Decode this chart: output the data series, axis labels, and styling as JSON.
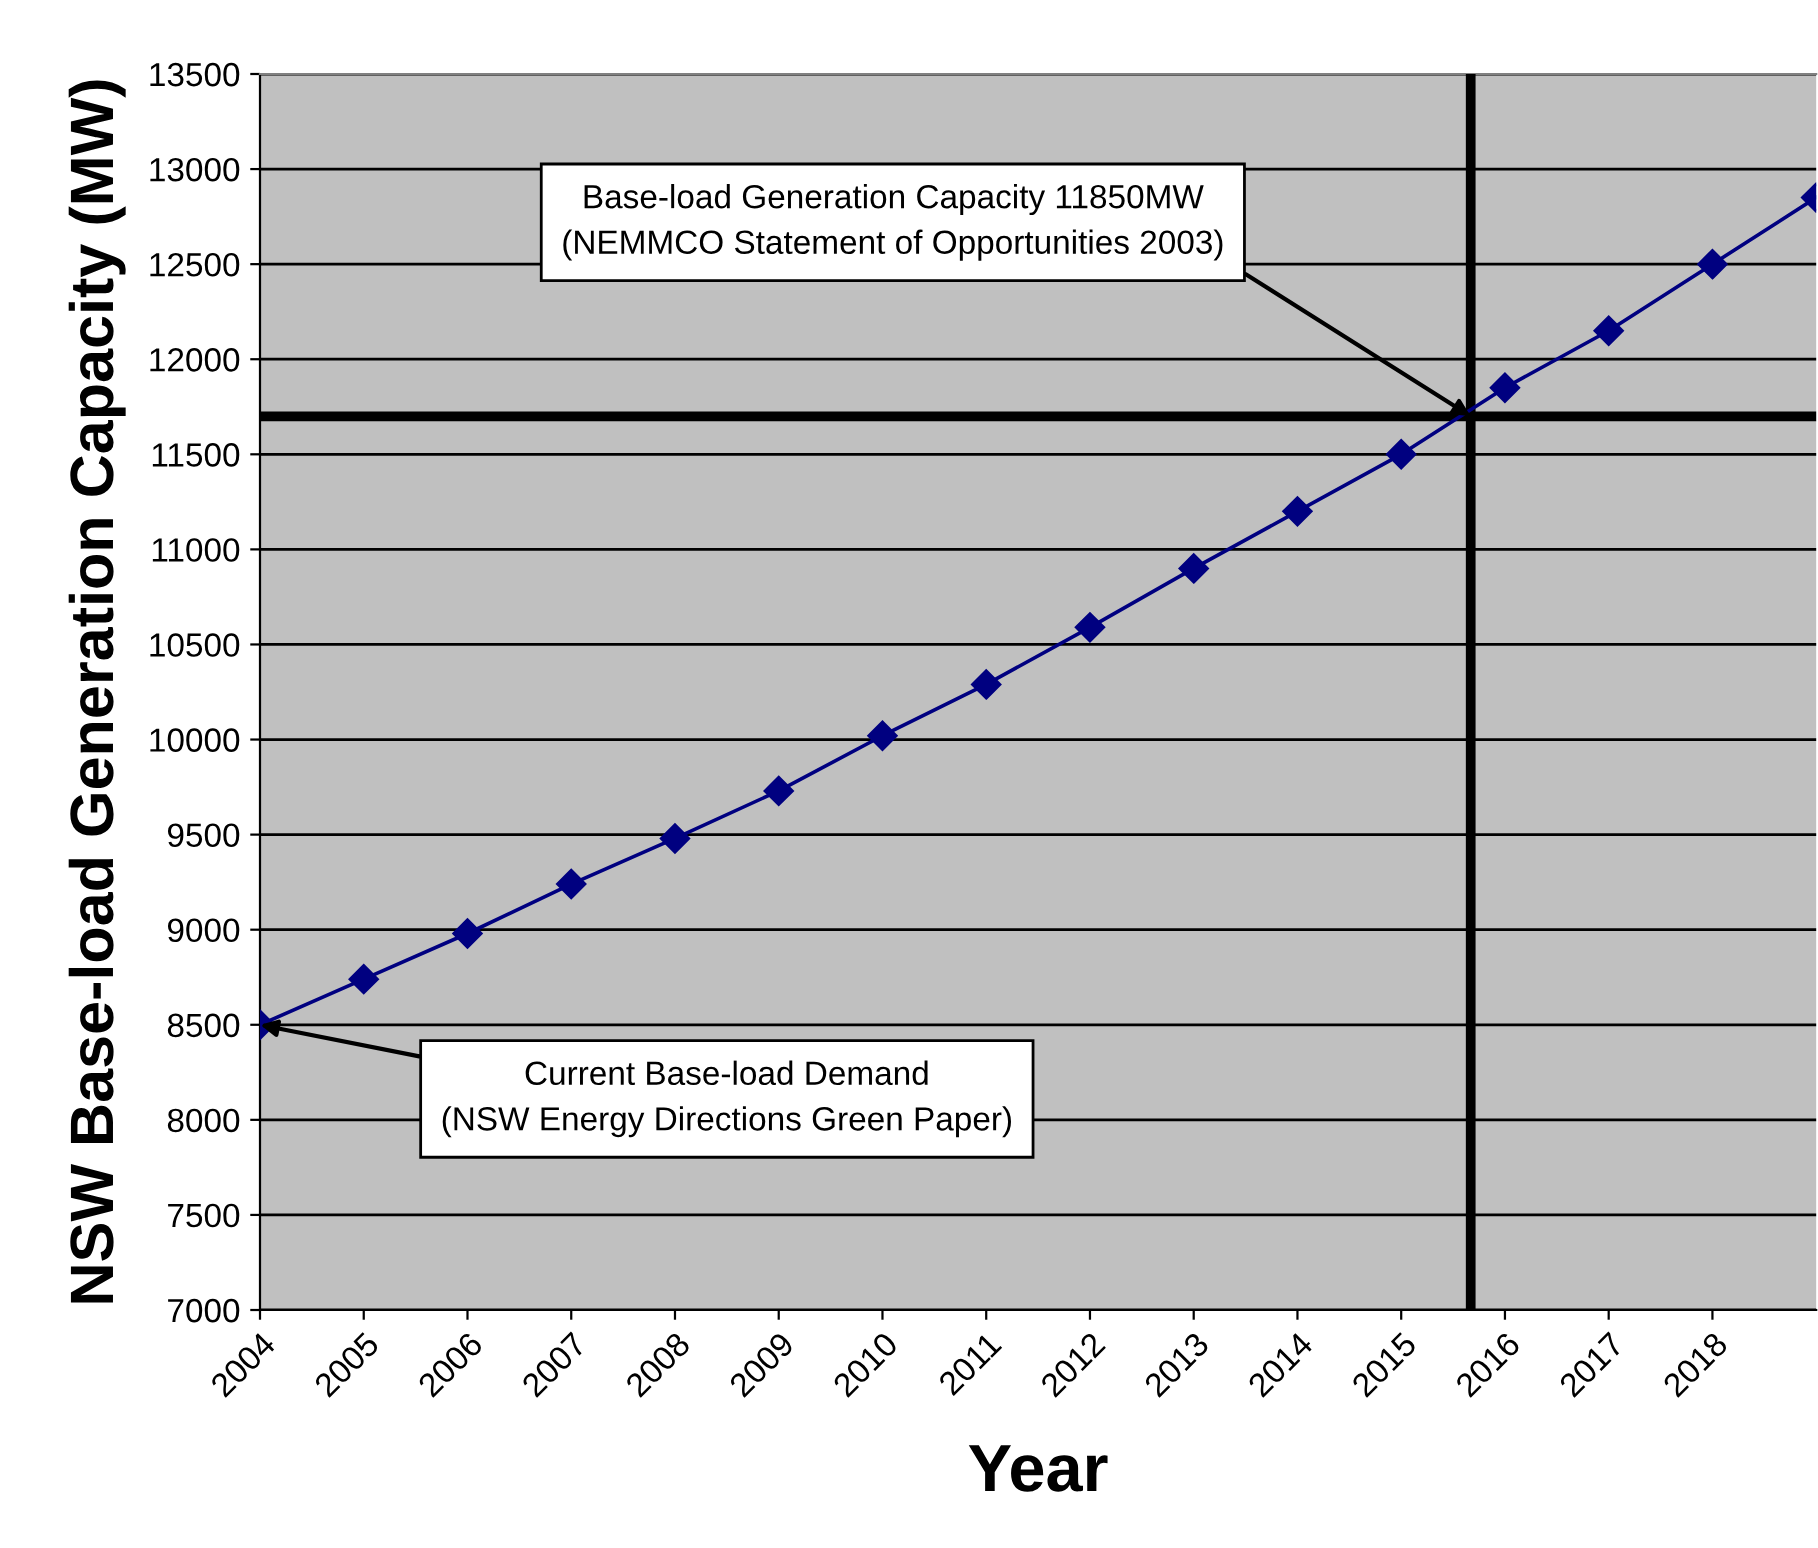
{
  "chart_data": {
    "type": "line",
    "xlabel": "Year",
    "ylabel": "NSW Base-load Generation Capacity (MW)",
    "x": [
      2004,
      2005,
      2006,
      2007,
      2008,
      2009,
      2010,
      2011,
      2012,
      2013,
      2014,
      2015,
      2016,
      2017,
      2018,
      2019
    ],
    "series": [
      {
        "color": "#000080",
        "values": [
          8500,
          8740,
          8980,
          9240,
          9480,
          9730,
          10020,
          10290,
          10590,
          10900,
          11200,
          11500,
          11850,
          12150,
          12500,
          12850
        ]
      }
    ],
    "xlim": [
      2004,
      2019
    ],
    "xticks": [
      2004,
      2005,
      2006,
      2007,
      2008,
      2009,
      2010,
      2011,
      2012,
      2013,
      2014,
      2015,
      2016,
      2017,
      2018
    ],
    "ylim": [
      7000,
      13500
    ],
    "yticks": [
      7000,
      7500,
      8000,
      8500,
      9000,
      9500,
      10000,
      10500,
      11000,
      11500,
      12000,
      12500,
      13000,
      13500
    ],
    "grid": "y",
    "marker": "diamond",
    "line_style": "solid",
    "ref_lines": [
      {
        "axis": "y",
        "value": 11700,
        "color": "#000000"
      },
      {
        "axis": "x",
        "value": 2015.67,
        "color": "#000000"
      }
    ],
    "annotations": [
      {
        "text": "Base-load Generation Capacity 11850MW\n(NEMMCO Statement of Opportunities 2003)",
        "x": 2015.67,
        "y": 11700
      },
      {
        "text": "Current Base-load Demand\n(NSW Energy Directions Green Paper)",
        "x": 2004,
        "y": 8500
      }
    ]
  }
}
